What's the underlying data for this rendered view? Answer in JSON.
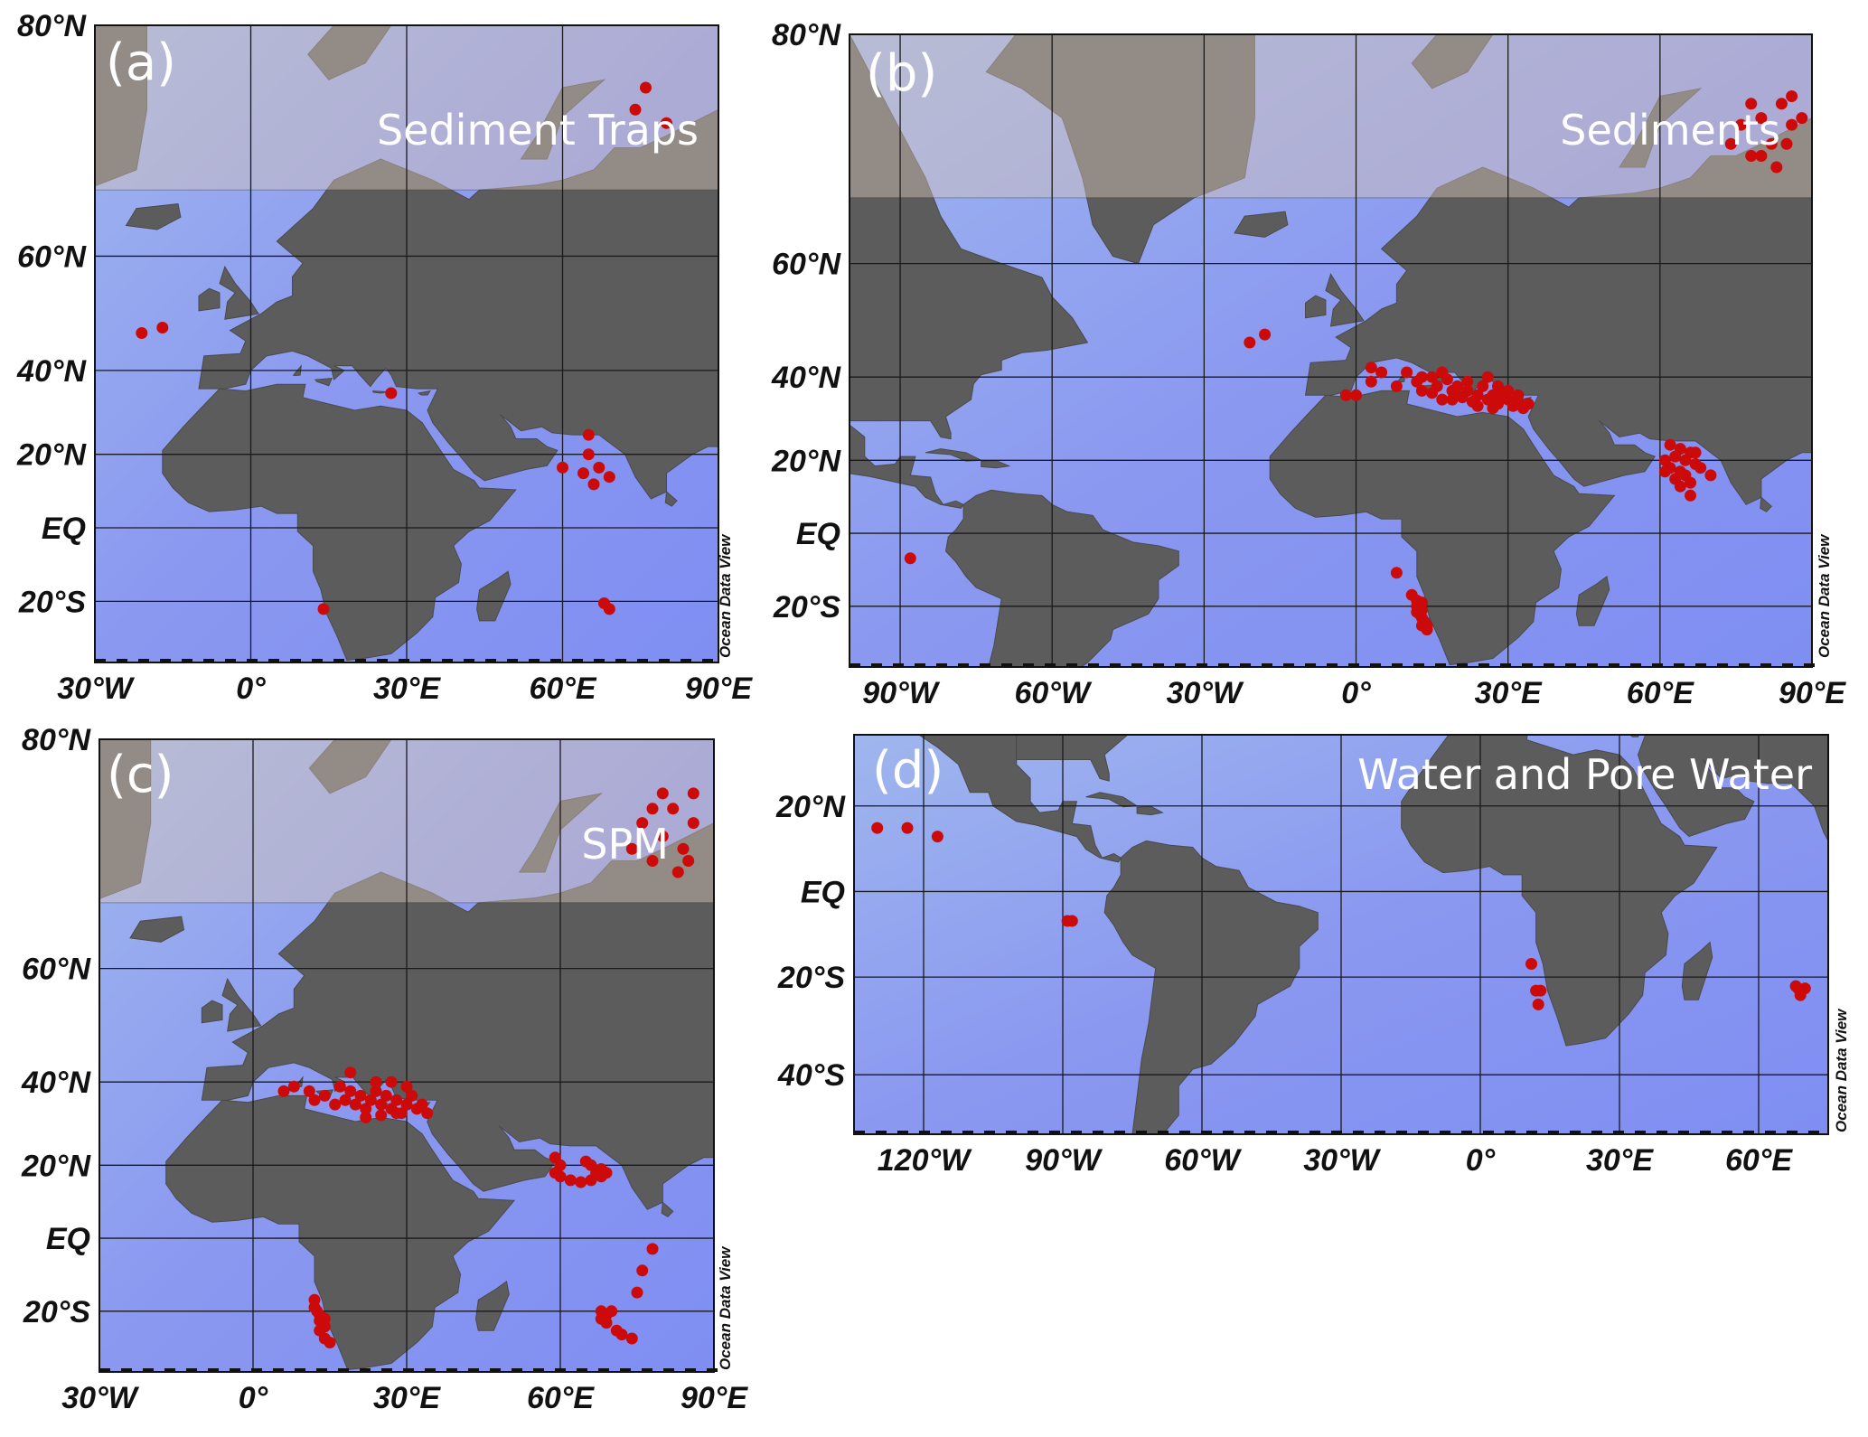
{
  "figure": {
    "panels": [
      {
        "id": "a",
        "label": "(a)",
        "title": "Sediment Traps",
        "lon_range": [
          -30,
          90
        ],
        "lat_range": [
          -35,
          80
        ],
        "lon_ticks": [
          -30,
          0,
          30,
          60,
          90
        ],
        "lat_ticks": [
          80,
          60,
          40,
          20,
          0,
          -20
        ],
        "lon_tick_labels": [
          "30°W",
          "0°",
          "30°E",
          "60°E",
          "90°E"
        ],
        "lat_tick_labels": [
          "80°N",
          "60°N",
          "40°N",
          "20°N",
          "EQ",
          "20°S"
        ],
        "watermark": "Ocean Data View",
        "points": [
          [
            -21,
            47.5
          ],
          [
            -17,
            48.5
          ],
          [
            74,
            75
          ],
          [
            76,
            76.5
          ],
          [
            80,
            74
          ],
          [
            27,
            35
          ],
          [
            65,
            25
          ],
          [
            65,
            20
          ],
          [
            60,
            16.5
          ],
          [
            64,
            15
          ],
          [
            67,
            16.5
          ],
          [
            69,
            14
          ],
          [
            66,
            12
          ],
          [
            14,
            -22
          ],
          [
            68,
            -20.5
          ],
          [
            69,
            -22
          ]
        ]
      },
      {
        "id": "b",
        "label": "(b)",
        "title": "Sediments",
        "lon_range": [
          -100,
          90
        ],
        "lat_range": [
          -35,
          80
        ],
        "lon_ticks": [
          -90,
          -60,
          -30,
          0,
          30,
          60,
          90
        ],
        "lat_ticks": [
          80,
          60,
          40,
          20,
          0,
          -20
        ],
        "lon_tick_labels": [
          "90°W",
          "60°W",
          "30°W",
          "0°",
          "30°E",
          "60°E",
          "90°E"
        ],
        "lat_tick_labels": [
          "80°N",
          "60°N",
          "40°N",
          "20°N",
          "EQ",
          "20°S"
        ],
        "watermark": "Ocean Data View",
        "points": [
          [
            -21,
            47
          ],
          [
            -18,
            48.5
          ],
          [
            -2,
            36
          ],
          [
            0,
            36
          ],
          [
            3,
            39
          ],
          [
            3,
            42
          ],
          [
            5,
            41
          ],
          [
            8,
            38
          ],
          [
            10,
            41
          ],
          [
            12,
            39
          ],
          [
            13,
            37
          ],
          [
            15,
            40
          ],
          [
            16,
            38
          ],
          [
            17,
            41
          ],
          [
            18,
            39.5
          ],
          [
            19,
            37
          ],
          [
            20,
            38
          ],
          [
            21,
            35.5
          ],
          [
            22,
            37
          ],
          [
            23,
            34.5
          ],
          [
            24,
            36
          ],
          [
            25,
            38
          ],
          [
            26,
            35
          ],
          [
            27,
            36
          ],
          [
            28,
            34
          ],
          [
            29,
            36
          ],
          [
            30,
            35
          ],
          [
            31,
            33.5
          ],
          [
            32,
            34.5
          ],
          [
            33,
            33
          ],
          [
            34,
            34
          ],
          [
            26,
            40
          ],
          [
            28,
            38
          ],
          [
            22,
            39
          ],
          [
            19,
            35
          ],
          [
            24,
            33.5
          ],
          [
            30,
            37
          ],
          [
            32,
            36
          ],
          [
            27,
            33
          ],
          [
            20,
            36
          ],
          [
            15,
            36.5
          ],
          [
            13,
            40
          ],
          [
            17,
            35
          ],
          [
            74,
            73
          ],
          [
            76,
            74.5
          ],
          [
            78,
            72
          ],
          [
            80,
            75
          ],
          [
            82,
            73
          ],
          [
            84,
            76
          ],
          [
            86,
            74.5
          ],
          [
            83,
            71
          ],
          [
            86,
            76.5
          ],
          [
            88,
            75
          ],
          [
            78,
            76
          ],
          [
            80,
            72
          ],
          [
            85,
            73
          ],
          [
            62,
            24
          ],
          [
            64,
            23
          ],
          [
            66,
            22
          ],
          [
            63,
            21
          ],
          [
            65,
            20
          ],
          [
            67,
            19
          ],
          [
            62,
            18
          ],
          [
            64,
            17
          ],
          [
            68,
            18
          ],
          [
            61,
            17
          ],
          [
            65,
            16
          ],
          [
            63,
            15
          ],
          [
            66,
            14
          ],
          [
            64,
            13
          ],
          [
            70,
            16
          ],
          [
            67,
            22
          ],
          [
            66,
            10.5
          ],
          [
            61,
            20
          ],
          [
            -88,
            -7
          ],
          [
            8,
            -11
          ],
          [
            11,
            -17
          ],
          [
            12,
            -18.5
          ],
          [
            12,
            -20
          ],
          [
            13,
            -21
          ],
          [
            12.5,
            -22
          ],
          [
            13,
            -23
          ],
          [
            13.5,
            -24
          ],
          [
            14,
            -25
          ],
          [
            14,
            -26
          ],
          [
            13,
            -25
          ],
          [
            12,
            -21.5
          ],
          [
            13,
            -19
          ]
        ]
      },
      {
        "id": "c",
        "label": "(c)",
        "title": "SPM",
        "lon_range": [
          -30,
          90
        ],
        "lat_range": [
          -35,
          80
        ],
        "lon_ticks": [
          -30,
          0,
          30,
          60,
          90
        ],
        "lat_ticks": [
          80,
          60,
          40,
          20,
          0,
          -20
        ],
        "lon_tick_labels": [
          "30°W",
          "0°",
          "30°E",
          "60°E",
          "90°E"
        ],
        "lat_tick_labels": [
          "80°N",
          "60°N",
          "40°N",
          "20°N",
          "EQ",
          "20°S"
        ],
        "watermark": "Ocean Data View",
        "points": [
          [
            6,
            38
          ],
          [
            8,
            39
          ],
          [
            11,
            38
          ],
          [
            12,
            36
          ],
          [
            14,
            37
          ],
          [
            16,
            35
          ],
          [
            18,
            36
          ],
          [
            19,
            38
          ],
          [
            20,
            35
          ],
          [
            21,
            37
          ],
          [
            22,
            34
          ],
          [
            23,
            36
          ],
          [
            24,
            38
          ],
          [
            25,
            35
          ],
          [
            26,
            37
          ],
          [
            27,
            34
          ],
          [
            28,
            36
          ],
          [
            29,
            33
          ],
          [
            30,
            35
          ],
          [
            31,
            37
          ],
          [
            32,
            34
          ],
          [
            33,
            35
          ],
          [
            34,
            33
          ],
          [
            24,
            40
          ],
          [
            27,
            40
          ],
          [
            30,
            39
          ],
          [
            19,
            42
          ],
          [
            17,
            39
          ],
          [
            22,
            32
          ],
          [
            25,
            32.5
          ],
          [
            28,
            33
          ],
          [
            74,
            73
          ],
          [
            76,
            75
          ],
          [
            78,
            72
          ],
          [
            80,
            74
          ],
          [
            82,
            76
          ],
          [
            84,
            73
          ],
          [
            86,
            75
          ],
          [
            83,
            71
          ],
          [
            80,
            77
          ],
          [
            78,
            76
          ],
          [
            86,
            77
          ],
          [
            85,
            72
          ],
          [
            59,
            22
          ],
          [
            60,
            20
          ],
          [
            59,
            18
          ],
          [
            60,
            17
          ],
          [
            62,
            16
          ],
          [
            64,
            15.5
          ],
          [
            66,
            16
          ],
          [
            68,
            17
          ],
          [
            69,
            18
          ],
          [
            68,
            19
          ],
          [
            66,
            20
          ],
          [
            65,
            21
          ],
          [
            67,
            18
          ],
          [
            78,
            -3
          ],
          [
            76,
            -9
          ],
          [
            75,
            -15
          ],
          [
            68,
            -20
          ],
          [
            69,
            -21
          ],
          [
            70,
            -20
          ],
          [
            68,
            -22
          ],
          [
            69,
            -23
          ],
          [
            71,
            -25
          ],
          [
            72,
            -26
          ],
          [
            74,
            -27
          ],
          [
            12,
            -17
          ],
          [
            12,
            -19
          ],
          [
            13,
            -21
          ],
          [
            13,
            -22.5
          ],
          [
            14,
            -24
          ],
          [
            13,
            -25
          ],
          [
            14,
            -27
          ],
          [
            15,
            -28
          ],
          [
            12.5,
            -20
          ],
          [
            14,
            -22
          ]
        ]
      },
      {
        "id": "d",
        "label": "(d)",
        "title": "Water and Pore Water",
        "lon_range": [
          -135,
          75
        ],
        "lat_range": [
          -50,
          35
        ],
        "lon_ticks": [
          -120,
          -90,
          -60,
          -30,
          0,
          30,
          60
        ],
        "lat_ticks": [
          20,
          0,
          -20,
          -40
        ],
        "lon_tick_labels": [
          "120°W",
          "90°W",
          "60°W",
          "30°W",
          "0°",
          "30°E",
          "60°E"
        ],
        "lat_tick_labels": [
          "20°N",
          "EQ",
          "20°S",
          "40°S"
        ],
        "watermark": "Ocean Data View",
        "points": [
          [
            -130,
            15
          ],
          [
            -123.5,
            15
          ],
          [
            -117,
            13
          ],
          [
            -89,
            -7
          ],
          [
            -88,
            -7
          ],
          [
            11,
            -17
          ],
          [
            12,
            -23
          ],
          [
            13,
            -23
          ],
          [
            12.5,
            -26
          ],
          [
            68,
            -22
          ],
          [
            69,
            -23
          ],
          [
            70,
            -22.5
          ],
          [
            69,
            -24
          ],
          [
            68.5,
            -22.5
          ]
        ]
      }
    ]
  },
  "colors": {
    "land": "#5c5c5c",
    "deep_ocean": "#7e8ef2",
    "ocean": "#8f9ff0",
    "shelf": "#7fb4e6",
    "arctic_land": "#d7c4b8",
    "sample_point": "#cc0a0a",
    "grid": "#1a1a1a"
  }
}
